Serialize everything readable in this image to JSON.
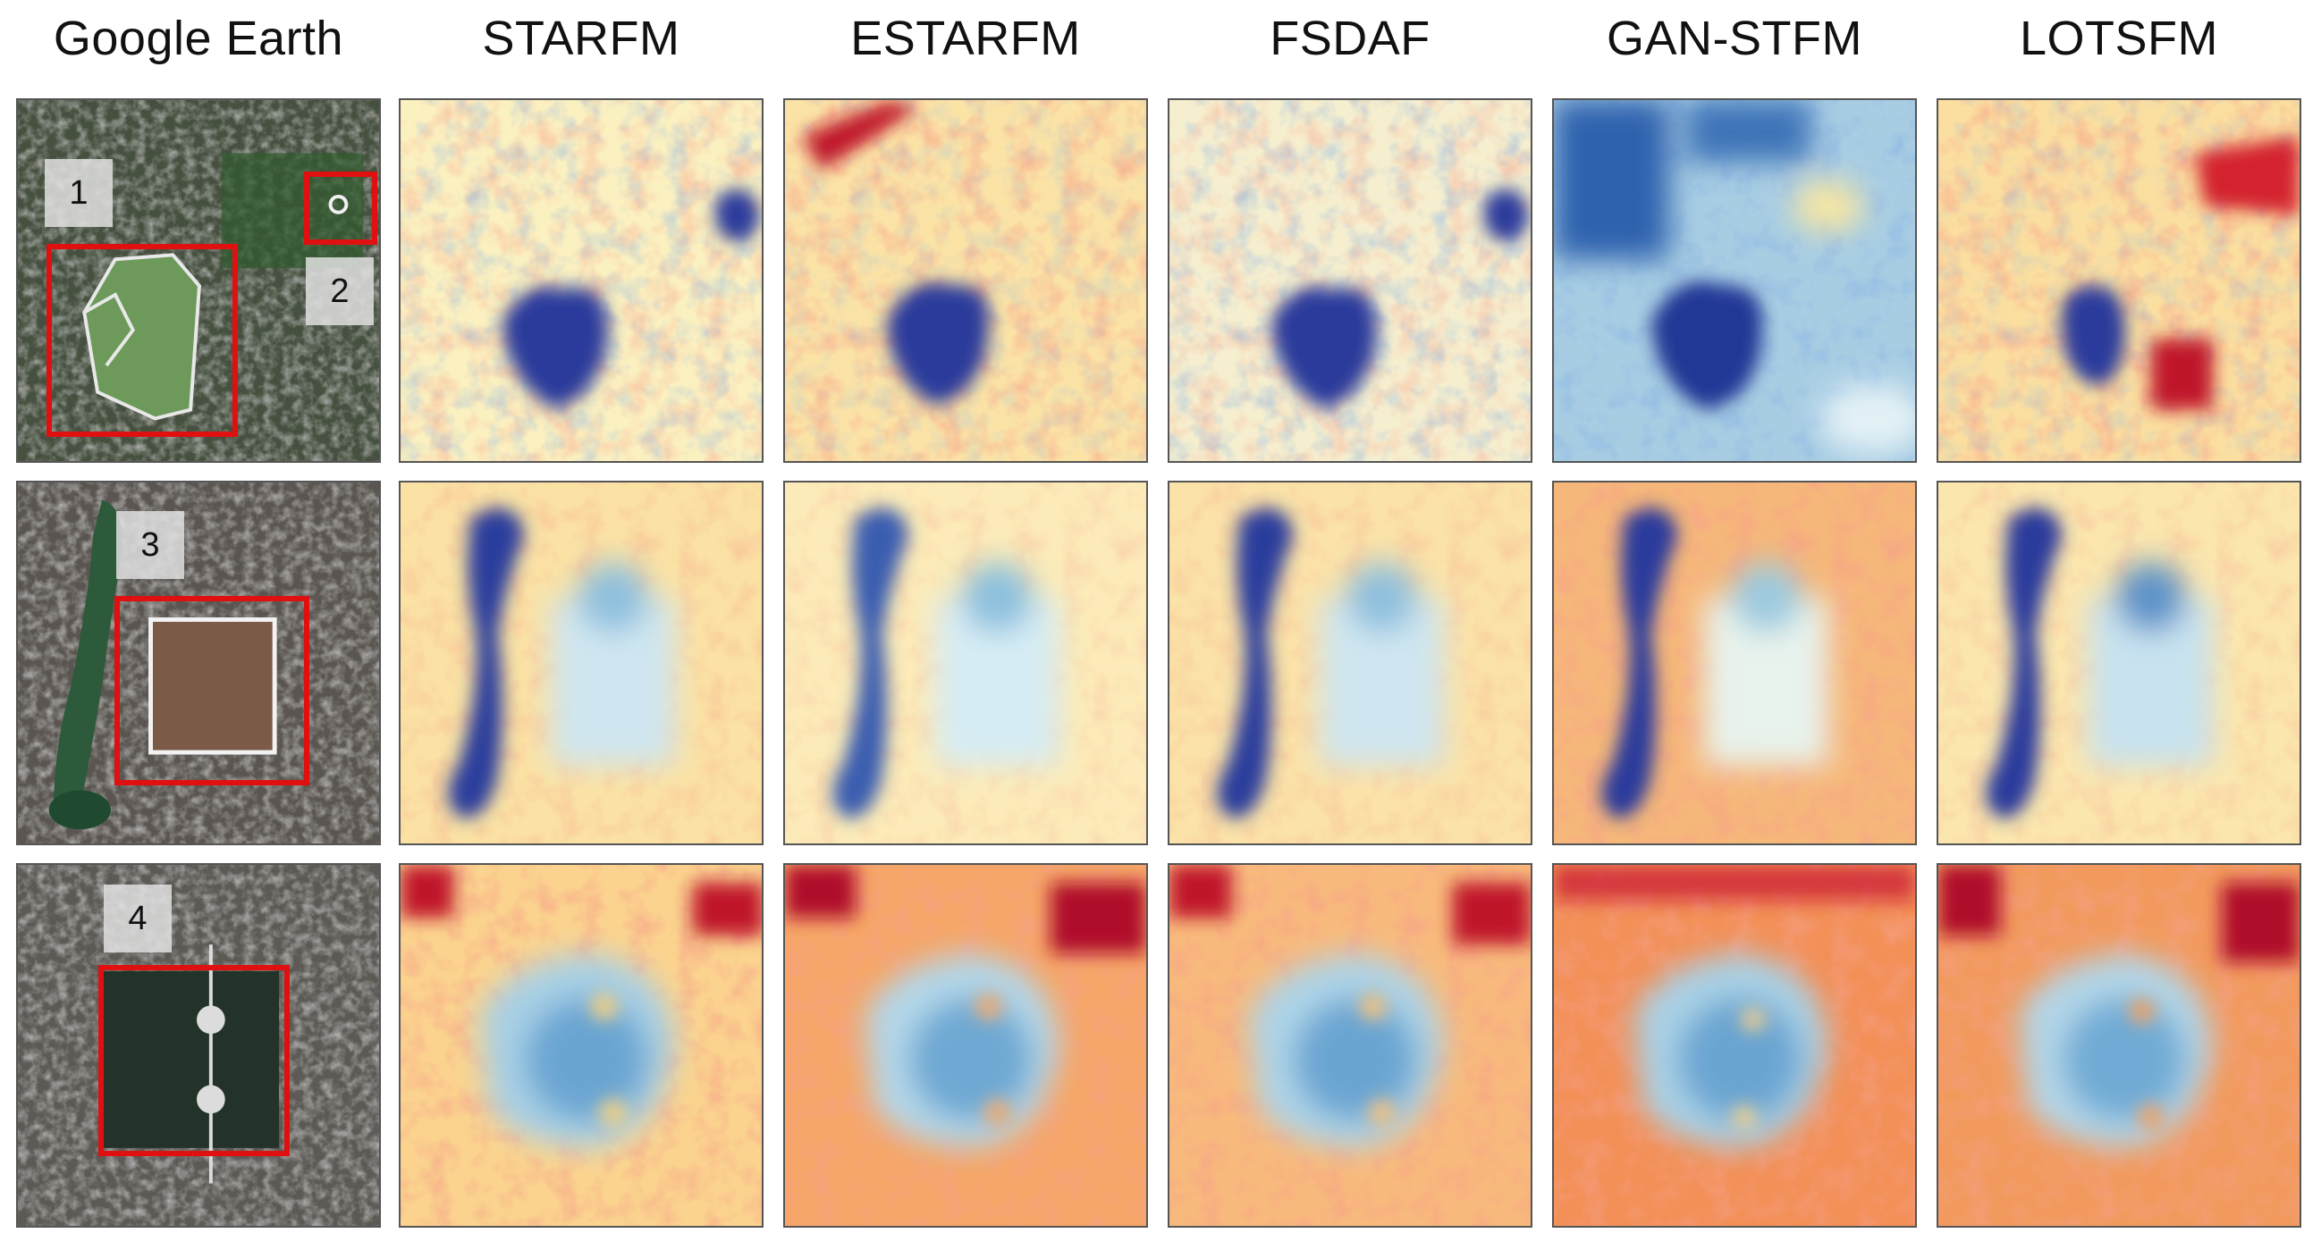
{
  "headers": [
    "Google Earth",
    "STARFM",
    "ESTARFM",
    "FSDAF",
    "GAN-STFM",
    "LOTSFM"
  ],
  "region_labels": [
    "1",
    "2",
    "3",
    "4"
  ],
  "colors": {
    "frame_red": "#e01010",
    "cold": "#2d3f9a",
    "cool": "#6fa7d2",
    "neutral": "#fbf5c4",
    "warm": "#f4a468",
    "hot": "#c8102e"
  }
}
